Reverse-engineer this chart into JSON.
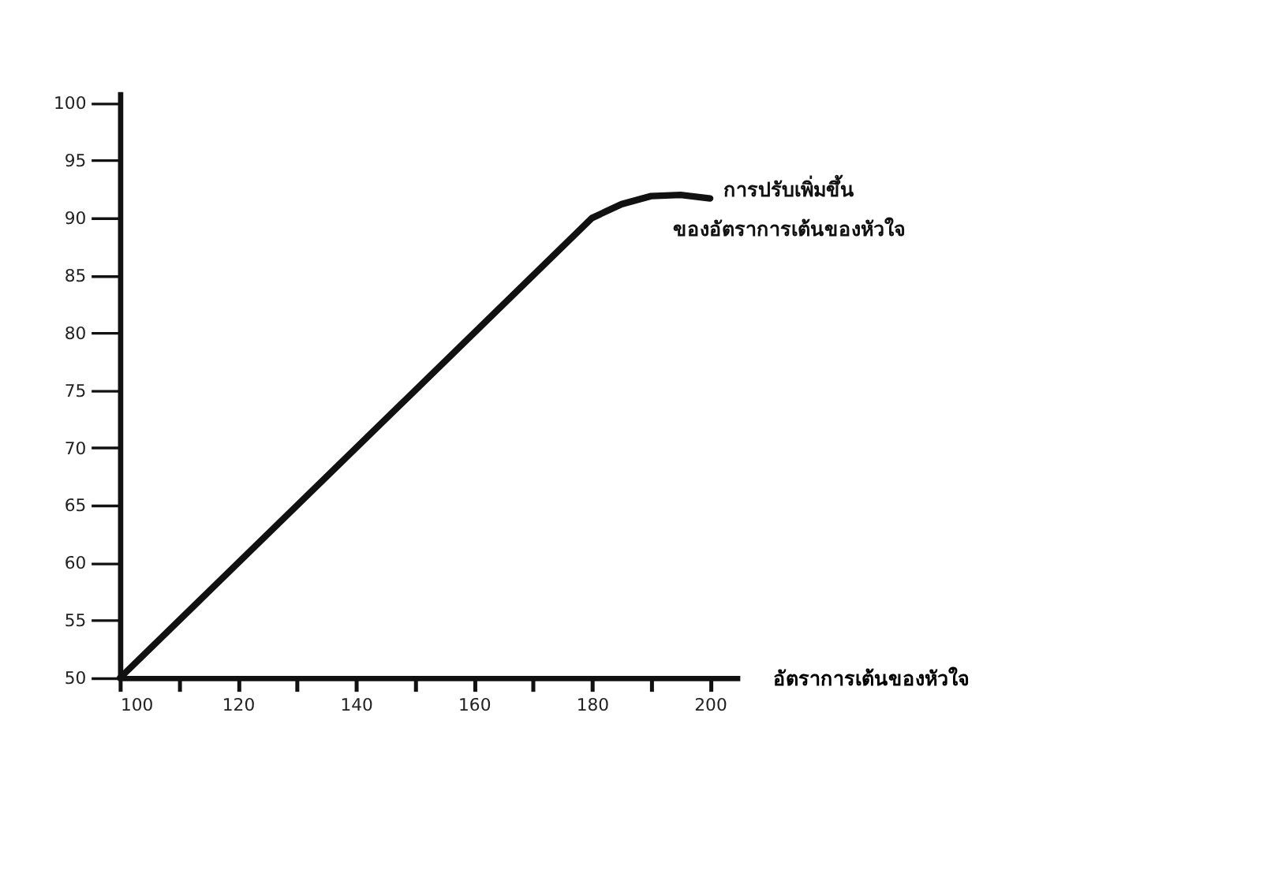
{
  "chart_data": {
    "type": "line",
    "x": [
      100,
      180,
      185,
      190,
      195,
      200
    ],
    "values": [
      50,
      90,
      91.2,
      91.9,
      92,
      91.7
    ],
    "color": "#111111",
    "xlabel": "อัตราการเต้นของหัวใจ",
    "xlim": [
      100,
      205
    ],
    "ylim": [
      50,
      101
    ],
    "xticks": [
      100,
      {
        "value": 110,
        "label": null
      },
      120,
      {
        "value": 130,
        "label": null
      },
      140,
      {
        "value": 150,
        "label": null
      },
      160,
      {
        "value": 170,
        "label": null
      },
      180,
      {
        "value": 190,
        "label": null
      },
      200
    ],
    "yticks": [
      50,
      55,
      60,
      65,
      70,
      75,
      80,
      85,
      90,
      95,
      100
    ],
    "annotations": [
      {
        "text": "การปรับเพิ่มขึ้น\nของอัตราการเต้นของหัวใจ",
        "x": 200,
        "y": 92
      }
    ],
    "line_style": "solid",
    "marker": "none",
    "grid": false
  }
}
